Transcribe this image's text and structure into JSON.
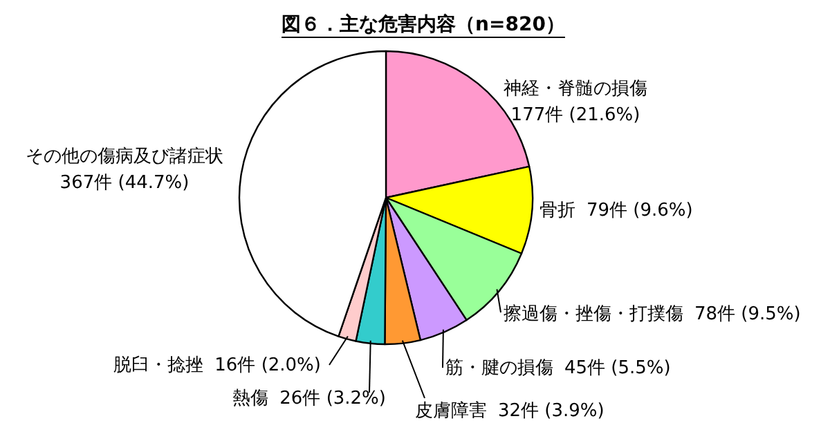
{
  "chart_data": {
    "type": "pie",
    "title": "図６．主な危害内容（n=820）",
    "categories": [
      "神経・脊髄の損傷",
      "骨折",
      "擦過傷・挫傷・打撲傷",
      "筋・腱の損傷",
      "皮膚障害",
      "熱傷",
      "脱臼・捻挫",
      "その他の傷病及び諸症状"
    ],
    "values": [
      177,
      79,
      78,
      45,
      32,
      26,
      16,
      367
    ],
    "value_labels": [
      "177件 (21.6%)",
      "79件 (9.6%)",
      "78件 (9.5%)",
      "45件 (5.5%)",
      "32件 (3.9%)",
      "26件 (3.2%)",
      "16件 (2.0%)",
      "367件 (44.7%)"
    ],
    "colors": [
      "#ff99cc",
      "#ffff00",
      "#99ff99",
      "#cc99ff",
      "#ff9933",
      "#33cccc",
      "#ffcccc",
      "#ffffff"
    ]
  }
}
